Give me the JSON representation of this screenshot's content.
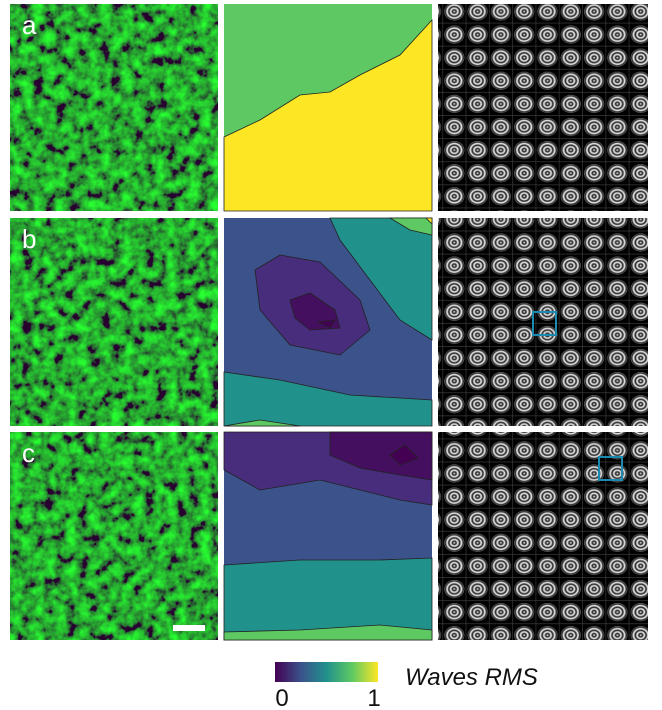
{
  "panels": [
    {
      "label": "a"
    },
    {
      "label": "b"
    },
    {
      "label": "c"
    }
  ],
  "colorbar": {
    "label": "Waves RMS",
    "lim": [
      0,
      1
    ],
    "ticks": [
      0,
      1
    ]
  }
}
